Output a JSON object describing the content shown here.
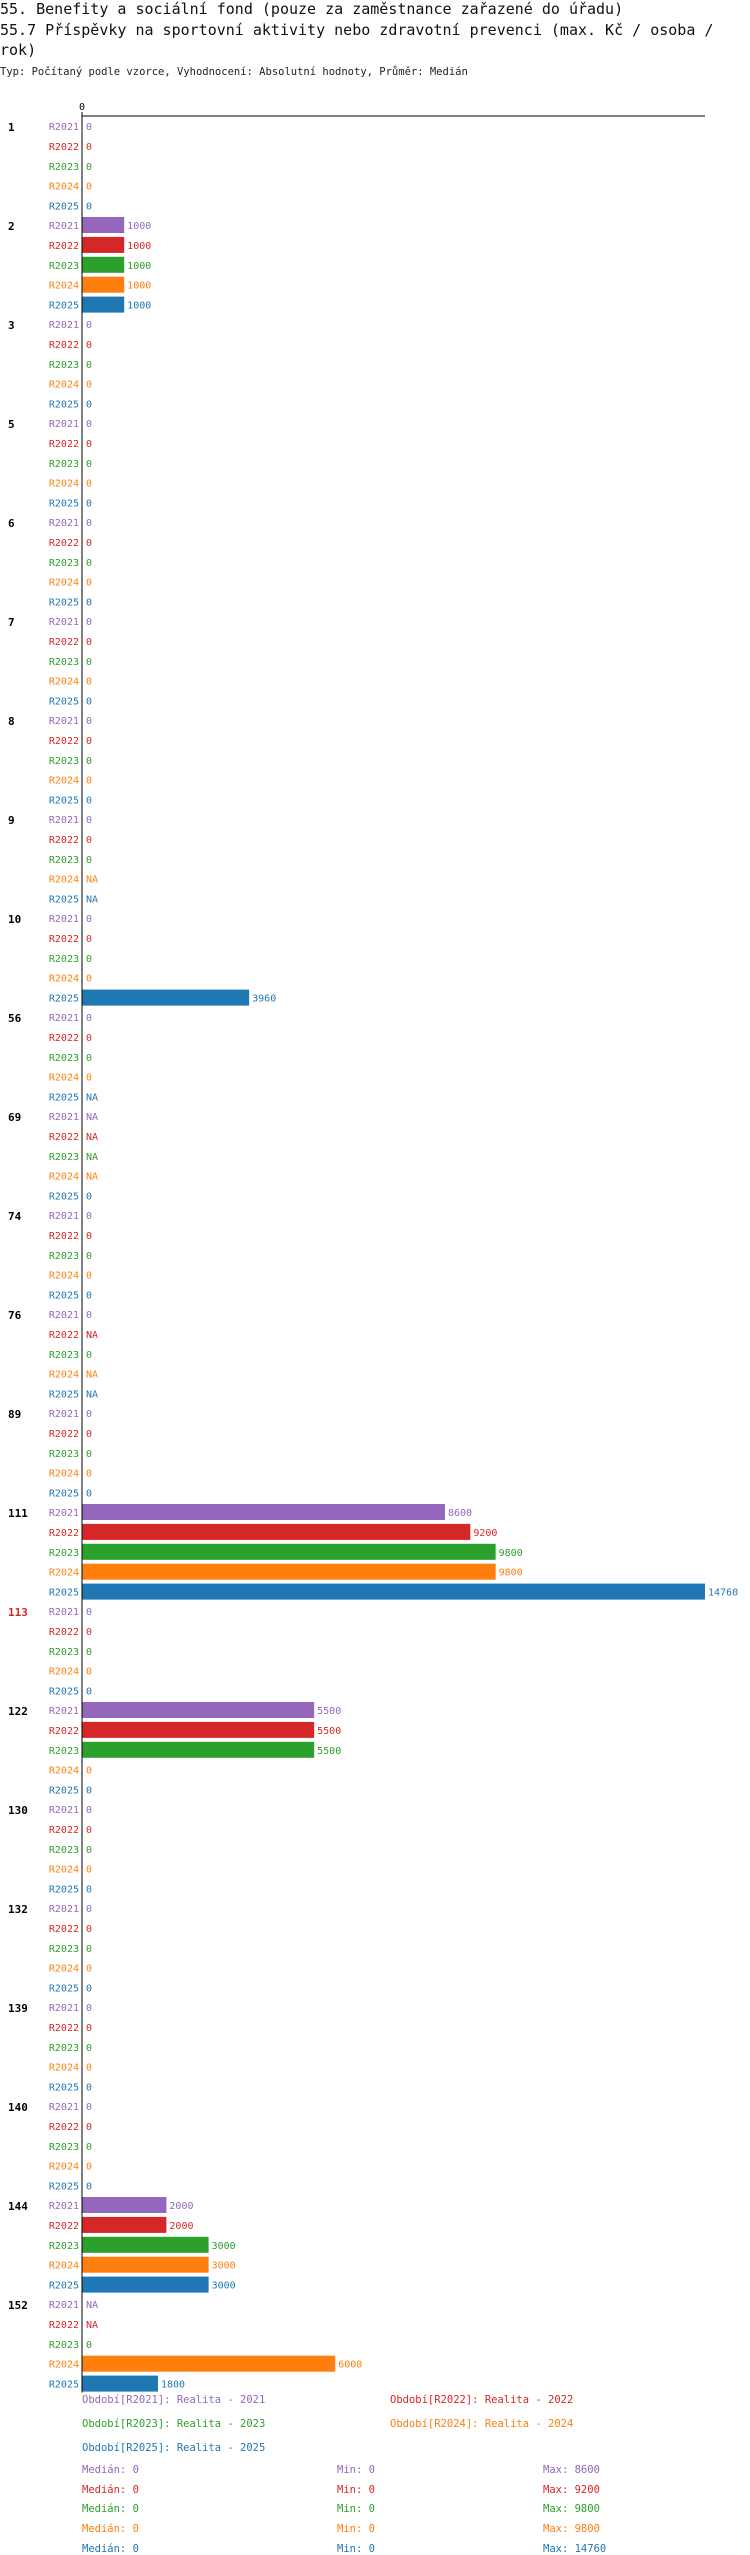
{
  "header": {
    "title": "55. Benefity a sociální fond (pouze za zaměstnance zařazené do úřadu)",
    "subtitle": "55.7 Příspěvky na sportovní aktivity nebo zdravotní prevenci (max. Kč / osoba / rok)",
    "type_line": "Typ: Počítaný podle vzorce, Vyhodnocení: Absolutní hodnoty, Průměr: Medián"
  },
  "colors": {
    "R2021": "#9467bd",
    "R2022": "#d62728",
    "R2023": "#2ca02c",
    "R2024": "#ff7f0e",
    "R2025": "#1f77b4",
    "highlight_group": "#d62728"
  },
  "chart_data": {
    "type": "bar",
    "orientation": "horizontal",
    "axis_zero_label": "0",
    "xlim": [
      0,
      14760
    ],
    "series_keys": [
      "R2021",
      "R2022",
      "R2023",
      "R2024",
      "R2025"
    ],
    "groups": [
      {
        "id": "1",
        "values": [
          0,
          0,
          0,
          0,
          0
        ]
      },
      {
        "id": "2",
        "values": [
          1000,
          1000,
          1000,
          1000,
          1000
        ]
      },
      {
        "id": "3",
        "values": [
          0,
          0,
          0,
          0,
          0
        ]
      },
      {
        "id": "5",
        "values": [
          0,
          0,
          0,
          0,
          0
        ]
      },
      {
        "id": "6",
        "values": [
          0,
          0,
          0,
          0,
          0
        ]
      },
      {
        "id": "7",
        "values": [
          0,
          0,
          0,
          0,
          0
        ]
      },
      {
        "id": "8",
        "values": [
          0,
          0,
          0,
          0,
          0
        ]
      },
      {
        "id": "9",
        "values": [
          0,
          0,
          0,
          null,
          null
        ]
      },
      {
        "id": "10",
        "values": [
          0,
          0,
          0,
          0,
          3960
        ]
      },
      {
        "id": "56",
        "values": [
          0,
          0,
          0,
          0,
          null
        ]
      },
      {
        "id": "69",
        "values": [
          null,
          null,
          null,
          null,
          0
        ]
      },
      {
        "id": "74",
        "values": [
          0,
          0,
          0,
          0,
          0
        ]
      },
      {
        "id": "76",
        "values": [
          0,
          null,
          0,
          null,
          null
        ]
      },
      {
        "id": "89",
        "values": [
          0,
          0,
          0,
          0,
          0
        ]
      },
      {
        "id": "111",
        "values": [
          8600,
          9200,
          9800,
          9800,
          14760
        ]
      },
      {
        "id": "113",
        "values": [
          0,
          0,
          0,
          0,
          0
        ],
        "highlight": true
      },
      {
        "id": "122",
        "values": [
          5500,
          5500,
          5500,
          0,
          0
        ]
      },
      {
        "id": "130",
        "values": [
          0,
          0,
          0,
          0,
          0
        ]
      },
      {
        "id": "132",
        "values": [
          0,
          0,
          0,
          0,
          0
        ]
      },
      {
        "id": "139",
        "values": [
          0,
          0,
          0,
          0,
          0
        ]
      },
      {
        "id": "140",
        "values": [
          0,
          0,
          0,
          0,
          0
        ]
      },
      {
        "id": "144",
        "values": [
          2000,
          2000,
          3000,
          3000,
          3000
        ]
      },
      {
        "id": "152",
        "values": [
          null,
          null,
          0,
          6000,
          1800
        ]
      }
    ],
    "na_label": "NA"
  },
  "legend": [
    {
      "key": "R2021",
      "label": "Období[R2021]: Realita - 2021"
    },
    {
      "key": "R2022",
      "label": "Období[R2022]: Realita - 2022"
    },
    {
      "key": "R2023",
      "label": "Období[R2023]: Realita - 2023"
    },
    {
      "key": "R2024",
      "label": "Období[R2024]: Realita - 2024"
    },
    {
      "key": "R2025",
      "label": "Období[R2025]: Realita - 2025"
    }
  ],
  "stats": [
    {
      "key": "R2021",
      "median": "Medián: 0",
      "min": "Min: 0",
      "max": "Max: 8600"
    },
    {
      "key": "R2022",
      "median": "Medián: 0",
      "min": "Min: 0",
      "max": "Max: 9200"
    },
    {
      "key": "R2023",
      "median": "Medián: 0",
      "min": "Min: 0",
      "max": "Max: 9800"
    },
    {
      "key": "R2024",
      "median": "Medián: 0",
      "min": "Min: 0",
      "max": "Max: 9800"
    },
    {
      "key": "R2025",
      "median": "Medián: 0",
      "min": "Min: 0",
      "max": "Max: 14760"
    }
  ]
}
